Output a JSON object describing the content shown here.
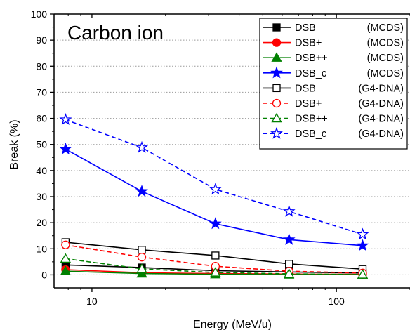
{
  "chart_data": {
    "type": "line",
    "title": "Carbon ion",
    "xlabel": "Energy (MeV/u)",
    "ylabel": "Break (%)",
    "xscale": "log",
    "xlim": [
      7,
      200
    ],
    "ylim": [
      -5,
      100
    ],
    "x_ticks": [
      10,
      100
    ],
    "y_ticks": [
      0,
      10,
      20,
      30,
      40,
      50,
      60,
      70,
      80,
      90,
      100
    ],
    "grid": "horizontal dotted",
    "legend_position": "top-right",
    "x": [
      7.8,
      16,
      32,
      64,
      128
    ],
    "series": [
      {
        "name": "DSB",
        "name_suffix": "(MCDS)",
        "values": [
          3.8,
          2.8,
          1.6,
          1.1,
          0.7
        ],
        "color": "#000000",
        "marker": "square",
        "filled": true,
        "dash": false
      },
      {
        "name": "DSB+",
        "name_suffix": "(MCDS)",
        "values": [
          2.0,
          0.8,
          0.5,
          0.3,
          0.2
        ],
        "color": "#ff0000",
        "marker": "circle",
        "filled": true,
        "dash": false
      },
      {
        "name": "DSB++",
        "name_suffix": "(MCDS)",
        "values": [
          1.4,
          0.5,
          0.2,
          0.1,
          0.05
        ],
        "color": "#008000",
        "marker": "triangle",
        "filled": true,
        "dash": false
      },
      {
        "name": "DSB_c",
        "name_suffix": "(MCDS)",
        "values": [
          48.2,
          32.0,
          19.6,
          13.5,
          11.2
        ],
        "color": "#0000ff",
        "marker": "star",
        "filled": true,
        "dash": false
      },
      {
        "name": "DSB",
        "name_suffix": "(G4-DNA)",
        "values": [
          12.5,
          9.6,
          7.4,
          4.2,
          2.2
        ],
        "color": "#000000",
        "marker": "square",
        "filled": false,
        "dash": false
      },
      {
        "name": "DSB+",
        "name_suffix": "(G4-DNA)",
        "values": [
          11.5,
          6.8,
          3.3,
          1.4,
          0.7
        ],
        "color": "#ff0000",
        "marker": "circle",
        "filled": false,
        "dash": true
      },
      {
        "name": "DSB++",
        "name_suffix": "(G4-DNA)",
        "values": [
          6.2,
          2.3,
          0.9,
          0.4,
          0.1
        ],
        "color": "#008000",
        "marker": "triangle",
        "filled": false,
        "dash": true
      },
      {
        "name": "DSB_c",
        "name_suffix": "(G4-DNA)",
        "values": [
          59.5,
          48.8,
          32.8,
          24.3,
          15.5
        ],
        "color": "#0000ff",
        "marker": "star",
        "filled": false,
        "dash": true
      }
    ]
  }
}
